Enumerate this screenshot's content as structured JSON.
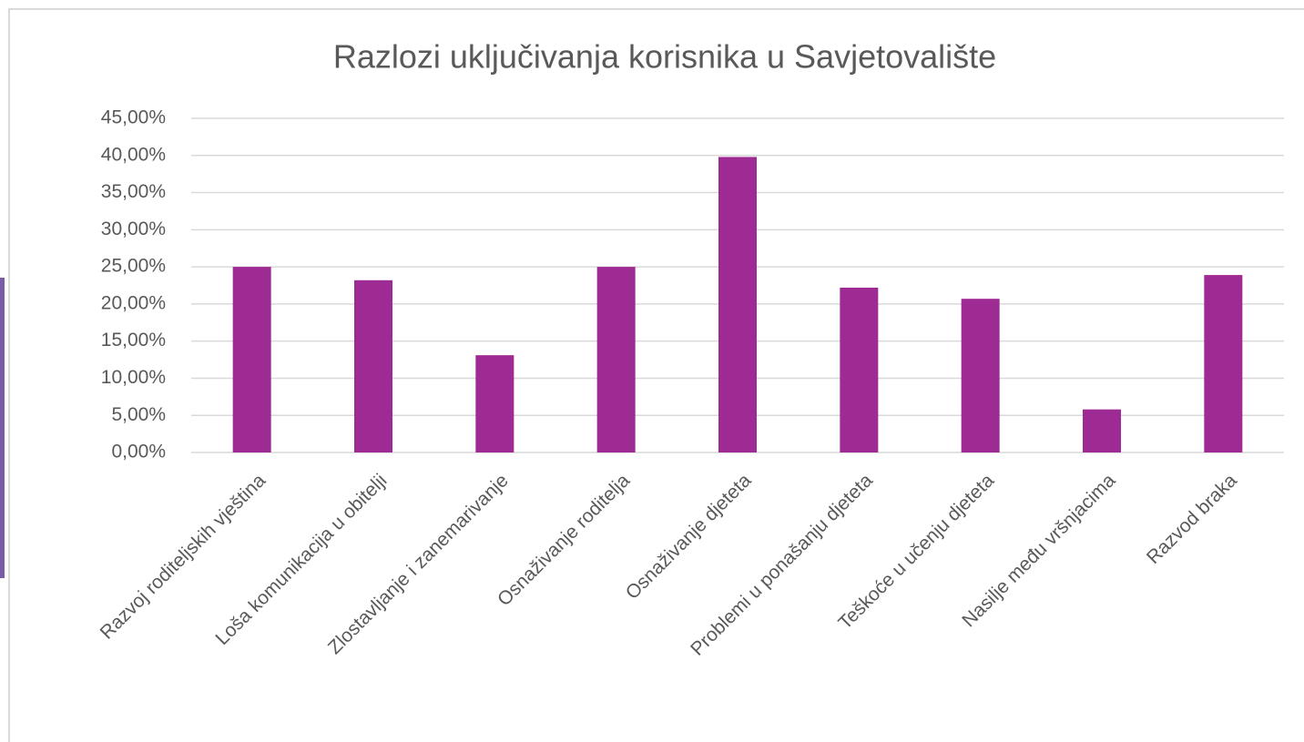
{
  "chart_data": {
    "type": "bar",
    "title": "Razlozi uključivanja korisnika u Savjetovalište",
    "categories": [
      "Razvoj roditeljskih vještina",
      "Loša komunikacija u obitelji",
      "Zlostavljanje i zanemarivanje",
      "Osnaživanje roditelja",
      "Osnaživanje djeteta",
      "Problemi u ponašanju djeteta",
      "Teškoće u učenju djeteta",
      "Nasilje među vršnjacima",
      "Razvod braka"
    ],
    "values": [
      25,
      23.2,
      13.1,
      25,
      39.8,
      22.2,
      20.7,
      5.8,
      23.9
    ],
    "color": "#9e2a93",
    "ylim": [
      0,
      45
    ],
    "yticks": [
      {
        "value": 0,
        "label": "0,00%"
      },
      {
        "value": 5,
        "label": "5,00%"
      },
      {
        "value": 10,
        "label": "10,00%"
      },
      {
        "value": 15,
        "label": "15,00%"
      },
      {
        "value": 20,
        "label": "20,00%"
      },
      {
        "value": 25,
        "label": "25,00%"
      },
      {
        "value": 30,
        "label": "30,00%"
      },
      {
        "value": 35,
        "label": "35,00%"
      },
      {
        "value": 40,
        "label": "40,00%"
      },
      {
        "value": 45,
        "label": "45,00%"
      }
    ],
    "grid": true
  }
}
